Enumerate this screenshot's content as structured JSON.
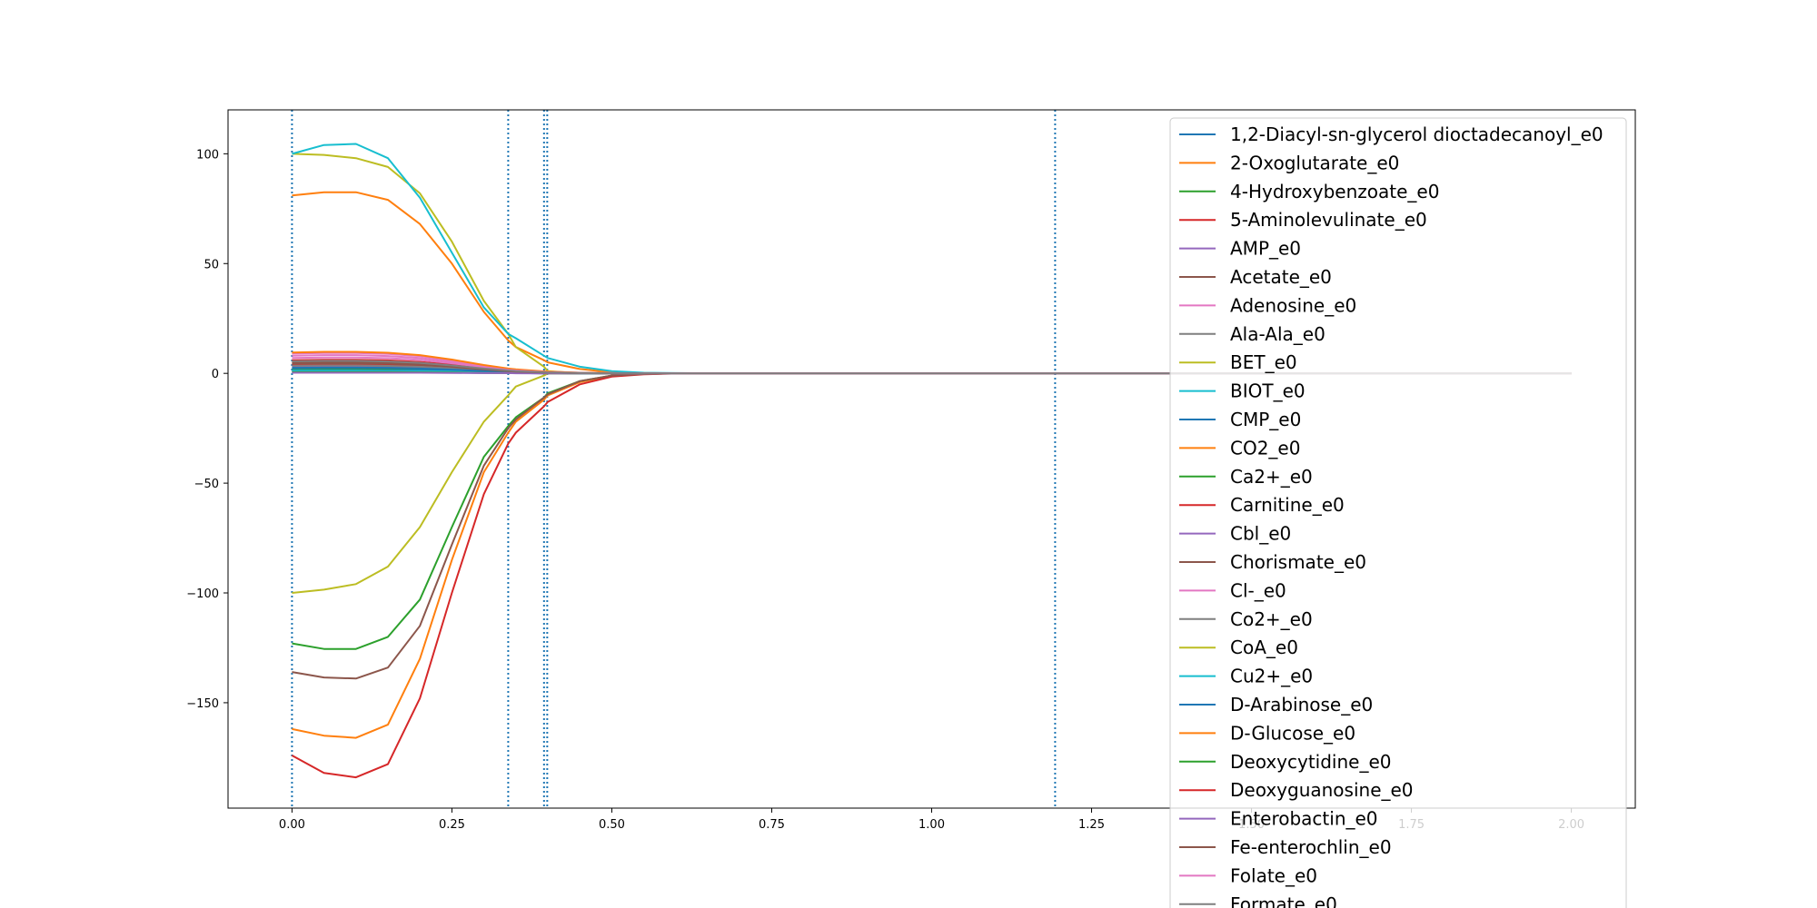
{
  "chart_data": {
    "type": "line",
    "title": "",
    "xlabel": "",
    "ylabel": "",
    "xlim": [
      -0.1,
      2.1
    ],
    "ylim": [
      -198,
      120
    ],
    "grid": false,
    "legend_position": "top-right",
    "x_ticks": [
      "0.00",
      "0.25",
      "0.50",
      "0.75",
      "1.00",
      "1.25",
      "1.50",
      "1.75",
      "2.00"
    ],
    "x_tick_values": [
      0,
      0.25,
      0.5,
      0.75,
      1.0,
      1.25,
      1.5,
      1.75,
      2.0
    ],
    "y_ticks": [
      "100",
      "50",
      "0",
      "−50",
      "−100",
      "−150"
    ],
    "y_tick_values": [
      100,
      50,
      0,
      -50,
      -100,
      -150
    ],
    "vlines": [
      0.0,
      0.338,
      0.394,
      0.399,
      1.193
    ],
    "vline_color": "#1f77b4",
    "x": [
      0,
      0.05,
      0.1,
      0.15,
      0.2,
      0.25,
      0.3,
      0.338,
      0.35,
      0.394,
      0.4,
      0.45,
      0.5,
      0.55,
      0.6,
      0.7,
      0.8,
      1.0,
      1.2,
      1.5,
      1.75,
      2.0
    ],
    "series": [
      {
        "name": "1,2-Diacyl-sn-glycerol dioctadecanoyl_e0",
        "color": "#1f77b4",
        "values": [
          0.5,
          0.5,
          0.5,
          0.4,
          0.4,
          0.3,
          0.2,
          0.1,
          0.1,
          0.05,
          0.05,
          0.02,
          0,
          0,
          0,
          0,
          0,
          0,
          0,
          0,
          0,
          0
        ]
      },
      {
        "name": "2-Oxoglutarate_e0",
        "color": "#ff7f0e",
        "values": [
          81,
          82.5,
          82.5,
          79,
          68,
          50,
          28,
          15,
          12,
          6,
          5,
          2,
          0.5,
          0.2,
          0,
          0,
          0,
          0,
          0,
          0,
          0,
          0
        ]
      },
      {
        "name": "4-Hydroxybenzoate_e0",
        "color": "#2ca02c",
        "values": [
          2,
          2,
          2,
          1.9,
          1.7,
          1.3,
          0.8,
          0.5,
          0.4,
          0.2,
          0.2,
          0.1,
          0,
          0,
          0,
          0,
          0,
          0,
          0,
          0,
          0,
          0
        ]
      },
      {
        "name": "5-Aminolevulinate_e0",
        "color": "#d62728",
        "values": [
          4,
          4.1,
          4.1,
          3.9,
          3.4,
          2.6,
          1.6,
          0.9,
          0.7,
          0.35,
          0.3,
          0.1,
          0.05,
          0,
          0,
          0,
          0,
          0,
          0,
          0,
          0,
          0
        ]
      },
      {
        "name": "AMP_e0",
        "color": "#9467bd",
        "values": [
          3,
          3.1,
          3.1,
          2.9,
          2.6,
          2,
          1.2,
          0.7,
          0.5,
          0.25,
          0.2,
          0.1,
          0,
          0,
          0,
          0,
          0,
          0,
          0,
          0,
          0,
          0
        ]
      },
      {
        "name": "Acetate_e0",
        "color": "#8c564b",
        "values": [
          5,
          5.2,
          5.2,
          5,
          4.4,
          3.3,
          2,
          1.2,
          0.9,
          0.45,
          0.4,
          0.15,
          0.05,
          0,
          0,
          0,
          0,
          0,
          0,
          0,
          0,
          0
        ]
      },
      {
        "name": "Adenosine_e0",
        "color": "#e377c2",
        "values": [
          8,
          8.3,
          8.3,
          7.9,
          7,
          5.3,
          3.2,
          1.9,
          1.5,
          0.7,
          0.6,
          0.2,
          0.1,
          0,
          0,
          0,
          0,
          0,
          0,
          0,
          0,
          0
        ]
      },
      {
        "name": "Ala-Ala_e0",
        "color": "#7f7f7f",
        "values": [
          1,
          1,
          1,
          1,
          0.9,
          0.7,
          0.4,
          0.2,
          0.2,
          0.1,
          0.1,
          0,
          0,
          0,
          0,
          0,
          0,
          0,
          0,
          0,
          0,
          0
        ]
      },
      {
        "name": "BET_e0",
        "color": "#bcbd22",
        "values": [
          100,
          99.5,
          98,
          94,
          82,
          60,
          33,
          18,
          12,
          3,
          1,
          0,
          0,
          0,
          0,
          0,
          0,
          0,
          0,
          0,
          0,
          0
        ]
      },
      {
        "name": "BIOT_e0",
        "color": "#17becf",
        "values": [
          100,
          104,
          104.5,
          98,
          80,
          55,
          30,
          18,
          16,
          8,
          7,
          3,
          1,
          0.3,
          0.1,
          0,
          0,
          0,
          0,
          0,
          0,
          0
        ]
      },
      {
        "name": "CMP_e0",
        "color": "#1f77b4",
        "values": [
          1.5,
          1.5,
          1.5,
          1.4,
          1.3,
          1,
          0.6,
          0.3,
          0.3,
          0.1,
          0.1,
          0,
          0,
          0,
          0,
          0,
          0,
          0,
          0,
          0,
          0,
          0
        ]
      },
      {
        "name": "CO2_e0",
        "color": "#ff7f0e",
        "values": [
          -162,
          -165,
          -166,
          -160,
          -130,
          -85,
          -45,
          -27,
          -22,
          -12,
          -10,
          -4,
          -1,
          -0.3,
          0,
          0,
          0,
          0,
          0,
          0,
          0,
          0
        ]
      },
      {
        "name": "Ca2+_e0",
        "color": "#2ca02c",
        "values": [
          -123,
          -125.5,
          -125.5,
          -120,
          -103,
          -70,
          -38,
          -24,
          -20,
          -11,
          -9,
          -3.5,
          -1,
          -0.3,
          0,
          0,
          0,
          0,
          0,
          0,
          0,
          0
        ]
      },
      {
        "name": "Carnitine_e0",
        "color": "#d62728",
        "values": [
          -174,
          -182,
          -184,
          -178,
          -148,
          -100,
          -55,
          -32,
          -27,
          -15,
          -13,
          -5,
          -1.5,
          -0.4,
          -0.1,
          0,
          0,
          0,
          0,
          0,
          0,
          0
        ]
      },
      {
        "name": "Cbl_e0",
        "color": "#9467bd",
        "values": [
          0.8,
          0.8,
          0.8,
          0.8,
          0.7,
          0.5,
          0.3,
          0.2,
          0.1,
          0.05,
          0.05,
          0,
          0,
          0,
          0,
          0,
          0,
          0,
          0,
          0,
          0,
          0
        ]
      },
      {
        "name": "Chorismate_e0",
        "color": "#8c564b",
        "values": [
          -136,
          -138.5,
          -139,
          -134,
          -115,
          -78,
          -42,
          -25,
          -21,
          -11,
          -9.5,
          -3.5,
          -1,
          -0.3,
          0,
          0,
          0,
          0,
          0,
          0,
          0,
          0
        ]
      },
      {
        "name": "Cl-_e0",
        "color": "#e377c2",
        "values": [
          9,
          9.3,
          9.3,
          8.9,
          7.9,
          6,
          3.6,
          2.1,
          1.7,
          0.8,
          0.7,
          0.25,
          0.1,
          0,
          0,
          0,
          0,
          0,
          0,
          0,
          0,
          0
        ]
      },
      {
        "name": "Co2+_e0",
        "color": "#7f7f7f",
        "values": [
          3.5,
          3.6,
          3.6,
          3.4,
          3,
          2.3,
          1.4,
          0.8,
          0.6,
          0.3,
          0.25,
          0.1,
          0,
          0,
          0,
          0,
          0,
          0,
          0,
          0,
          0,
          0
        ]
      },
      {
        "name": "CoA_e0",
        "color": "#bcbd22",
        "values": [
          -100,
          -98.5,
          -96,
          -88,
          -70,
          -45,
          -22,
          -10,
          -6,
          -1,
          0,
          0,
          0,
          0,
          0,
          0,
          0,
          0,
          0,
          0,
          0,
          0
        ]
      },
      {
        "name": "Cu2+_e0",
        "color": "#17becf",
        "values": [
          1.2,
          1.2,
          1.2,
          1.1,
          1,
          0.8,
          0.5,
          0.3,
          0.2,
          0.1,
          0.1,
          0,
          0,
          0,
          0,
          0,
          0,
          0,
          0,
          0,
          0,
          0
        ]
      },
      {
        "name": "D-Arabinose_e0",
        "color": "#1f77b4",
        "values": [
          2.5,
          2.6,
          2.6,
          2.5,
          2.2,
          1.7,
          1,
          0.6,
          0.5,
          0.2,
          0.2,
          0.1,
          0,
          0,
          0,
          0,
          0,
          0,
          0,
          0,
          0,
          0
        ]
      },
      {
        "name": "D-Glucose_e0",
        "color": "#ff7f0e",
        "values": [
          9.5,
          9.8,
          9.8,
          9.4,
          8.3,
          6.3,
          3.8,
          2.2,
          1.8,
          0.9,
          0.8,
          0.3,
          0.1,
          0,
          0,
          0,
          0,
          0,
          0,
          0,
          0,
          0
        ]
      },
      {
        "name": "Deoxycytidine_e0",
        "color": "#2ca02c",
        "values": [
          0.6,
          0.6,
          0.6,
          0.6,
          0.5,
          0.4,
          0.2,
          0.1,
          0.1,
          0.05,
          0.05,
          0,
          0,
          0,
          0,
          0,
          0,
          0,
          0,
          0,
          0,
          0
        ]
      },
      {
        "name": "Deoxyguanosine_e0",
        "color": "#d62728",
        "values": [
          6,
          6.2,
          6.2,
          5.9,
          5.2,
          4,
          2.4,
          1.4,
          1.1,
          0.5,
          0.45,
          0.15,
          0.05,
          0,
          0,
          0,
          0,
          0,
          0,
          0,
          0,
          0
        ]
      },
      {
        "name": "Enterobactin_e0",
        "color": "#9467bd",
        "values": [
          0.3,
          0.3,
          0.3,
          0.3,
          0.3,
          0.2,
          0.1,
          0.1,
          0.05,
          0,
          0,
          0,
          0,
          0,
          0,
          0,
          0,
          0,
          0,
          0,
          0,
          0
        ]
      },
      {
        "name": "Fe-enterochlin_e0",
        "color": "#8c564b",
        "values": [
          4.5,
          4.6,
          4.6,
          4.4,
          3.9,
          3,
          1.8,
          1,
          0.8,
          0.4,
          0.35,
          0.1,
          0,
          0,
          0,
          0,
          0,
          0,
          0,
          0,
          0,
          0
        ]
      },
      {
        "name": "Folate_e0",
        "color": "#e377c2",
        "values": [
          7,
          7.2,
          7.2,
          6.9,
          6.1,
          4.6,
          2.8,
          1.6,
          1.3,
          0.6,
          0.5,
          0.2,
          0.05,
          0,
          0,
          0,
          0,
          0,
          0,
          0,
          0,
          0
        ]
      },
      {
        "name": "Formate_e0",
        "color": "#7f7f7f",
        "values": [
          5.5,
          5.7,
          5.7,
          5.4,
          4.8,
          3.6,
          2.2,
          1.3,
          1,
          0.5,
          0.4,
          0.15,
          0.05,
          0,
          0,
          0,
          0,
          0,
          0,
          0,
          0,
          0
        ]
      }
    ]
  }
}
